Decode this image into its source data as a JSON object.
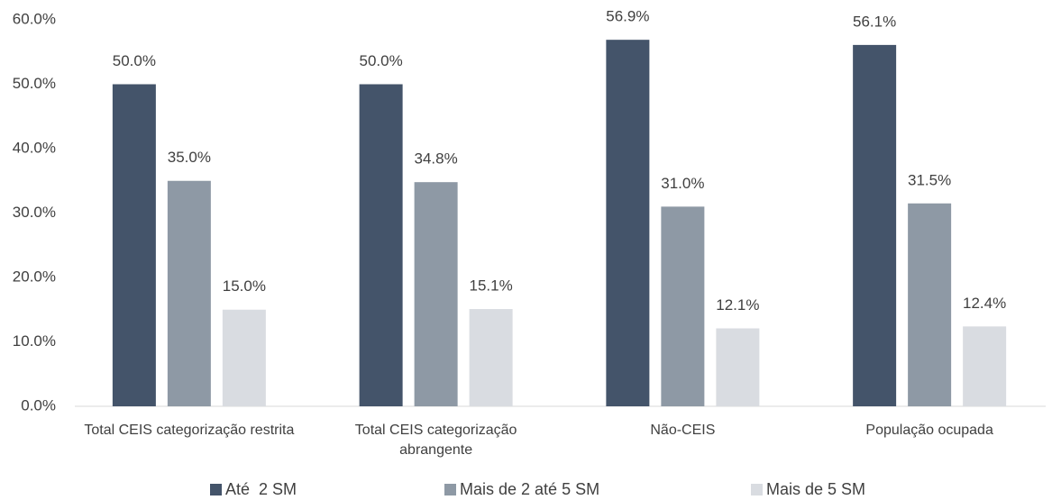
{
  "chart_data": {
    "type": "bar",
    "categories": [
      "Total CEIS categorização restrita",
      "Total CEIS categorização abrangente",
      "Não-CEIS",
      "População ocupada"
    ],
    "series": [
      {
        "name": "Até  2 SM",
        "color": "#44546a",
        "values": [
          50.0,
          50.0,
          56.9,
          56.1
        ],
        "value_labels": [
          "50.0%",
          "50.0%",
          "56.9%",
          "56.1%"
        ]
      },
      {
        "name": "Mais de 2 até 5 SM",
        "color": "#8e99a5",
        "values": [
          35.0,
          34.8,
          31.0,
          31.5
        ],
        "value_labels": [
          "35.0%",
          "34.8%",
          "31.0%",
          "31.5%"
        ]
      },
      {
        "name": "Mais de 5 SM",
        "color": "#d9dce1",
        "values": [
          15.0,
          15.1,
          12.1,
          12.4
        ],
        "value_labels": [
          "15.0%",
          "15.1%",
          "12.1%",
          "12.4%"
        ]
      }
    ],
    "ylim": [
      0,
      60
    ],
    "yticks": [
      {
        "value": 0,
        "label": "0.0%"
      },
      {
        "value": 10,
        "label": "10.0%"
      },
      {
        "value": 20,
        "label": "20.0%"
      },
      {
        "value": 30,
        "label": "30.0%"
      },
      {
        "value": 40,
        "label": "40.0%"
      },
      {
        "value": 50,
        "label": "50.0%"
      },
      {
        "value": 60,
        "label": "60.0%"
      }
    ],
    "grid": false,
    "legend": "bottom"
  }
}
